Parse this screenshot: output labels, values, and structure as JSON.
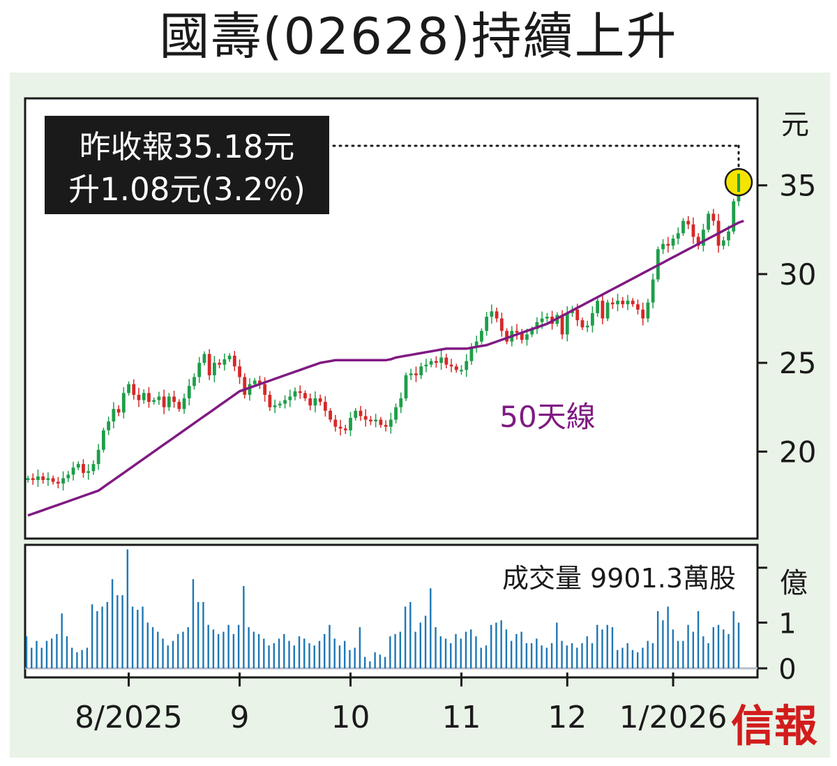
{
  "title": "國壽(02628)持續上升",
  "colors": {
    "background": "#e9f3e7",
    "up": "#1e9e4a",
    "down": "#d62828",
    "ma50": "#7f1a82",
    "volume": "#1f77b4",
    "callout_bg": "#1a1a1a",
    "highlight": "#f5e400",
    "brand": "#d21c1c"
  },
  "callout": {
    "line1": "昨收報35.18元",
    "line2": "升1.08元(3.2%)"
  },
  "brand": "信報",
  "chart_data": [
    {
      "type": "candlestick",
      "title": "國壽(02628)持續上升",
      "ylabel": "元",
      "yticks": [
        20,
        25,
        30,
        35
      ],
      "ylim": [
        15.1,
        39.9
      ],
      "x_tick_labels": [
        "8/2025",
        "9",
        "10",
        "11",
        "12",
        "1/2026"
      ],
      "ma_label": "50天線",
      "last_close": 35.18,
      "change": 1.08,
      "change_pct": 3.2,
      "closes": [
        18.5,
        18.4,
        18.6,
        18.4,
        18.5,
        18.3,
        18.2,
        18.5,
        18.7,
        19.1,
        19.3,
        18.8,
        18.9,
        19.3,
        20.1,
        21.2,
        21.7,
        22.4,
        22.2,
        23.3,
        23.8,
        23.2,
        22.9,
        23.3,
        22.8,
        22.9,
        23.1,
        22.5,
        23.1,
        22.8,
        22.4,
        23.0,
        23.7,
        24.2,
        25.0,
        25.5,
        24.3,
        25.0,
        24.9,
        25.2,
        25.4,
        24.8,
        24.2,
        23.2,
        23.8,
        24.0,
        23.8,
        23.2,
        22.5,
        22.6,
        22.7,
        22.9,
        23.1,
        23.4,
        23.3,
        23.0,
        22.6,
        23.0,
        22.8,
        22.3,
        21.8,
        21.4,
        21.3,
        21.2,
        21.9,
        22.3,
        22.0,
        21.8,
        21.7,
        21.8,
        21.5,
        21.4,
        21.8,
        22.5,
        23.0,
        24.3,
        24.4,
        24.3,
        24.8,
        24.9,
        25.1,
        25.0,
        25.3,
        24.9,
        24.8,
        24.6,
        24.6,
        25.1,
        25.9,
        26.2,
        26.8,
        27.6,
        27.9,
        27.5,
        26.8,
        26.2,
        26.8,
        26.7,
        26.3,
        26.6,
        26.9,
        27.3,
        27.5,
        27.6,
        27.2,
        27.7,
        26.6,
        27.8,
        28.0,
        27.4,
        27.0,
        27.1,
        27.8,
        28.5,
        27.5,
        28.4,
        28.3,
        28.5,
        28.3,
        28.5,
        28.3,
        28.0,
        27.5,
        28.4,
        29.7,
        31.4,
        31.7,
        31.6,
        32.0,
        32.3,
        33.0,
        32.8,
        32.1,
        31.6,
        32.5,
        33.4,
        33.0,
        31.6,
        31.9,
        32.4,
        34.1,
        35.18
      ],
      "opens": [
        18.4,
        18.5,
        18.4,
        18.6,
        18.4,
        18.5,
        18.3,
        18.2,
        18.5,
        18.7,
        19.1,
        19.3,
        18.8,
        18.9,
        19.3,
        20.1,
        21.2,
        21.7,
        22.4,
        22.2,
        23.3,
        23.8,
        23.2,
        22.9,
        23.3,
        22.8,
        22.9,
        23.1,
        22.5,
        23.1,
        22.8,
        22.4,
        23.0,
        23.7,
        24.2,
        25.0,
        25.5,
        24.3,
        25.0,
        24.9,
        25.2,
        25.4,
        24.8,
        24.2,
        23.2,
        23.8,
        24.0,
        23.8,
        23.2,
        22.5,
        22.6,
        22.7,
        22.9,
        23.1,
        23.4,
        23.3,
        23.0,
        22.6,
        23.0,
        22.8,
        22.3,
        21.8,
        21.4,
        21.3,
        21.2,
        21.9,
        22.3,
        22.0,
        21.8,
        21.7,
        21.8,
        21.5,
        21.4,
        21.8,
        22.5,
        23.0,
        24.3,
        24.4,
        24.3,
        24.8,
        24.9,
        25.1,
        25.0,
        25.3,
        24.9,
        24.8,
        24.6,
        24.6,
        25.1,
        25.9,
        26.2,
        26.8,
        27.6,
        27.9,
        27.5,
        26.8,
        26.2,
        26.8,
        26.7,
        26.3,
        26.6,
        26.9,
        27.3,
        27.5,
        27.6,
        27.2,
        27.7,
        26.6,
        27.8,
        28.0,
        27.4,
        27.0,
        27.1,
        27.8,
        28.5,
        27.5,
        28.4,
        28.3,
        28.5,
        28.3,
        28.5,
        28.3,
        28.0,
        27.5,
        28.4,
        29.7,
        31.4,
        31.7,
        31.6,
        32.0,
        32.3,
        33.0,
        32.8,
        32.1,
        31.6,
        32.5,
        33.4,
        33.0,
        31.6,
        31.9,
        32.4,
        34.1
      ],
      "ma50": [
        16.4,
        16.5,
        16.6,
        16.7,
        16.8,
        16.9,
        17.0,
        17.1,
        17.2,
        17.3,
        17.4,
        17.5,
        17.6,
        17.7,
        17.8,
        18.0,
        18.2,
        18.4,
        18.6,
        18.8,
        19.0,
        19.2,
        19.4,
        19.6,
        19.8,
        20.0,
        20.2,
        20.4,
        20.6,
        20.8,
        21.0,
        21.2,
        21.4,
        21.6,
        21.8,
        22.0,
        22.2,
        22.4,
        22.6,
        22.8,
        23.0,
        23.2,
        23.4,
        23.5,
        23.6,
        23.7,
        23.8,
        23.9,
        24.0,
        24.1,
        24.2,
        24.3,
        24.4,
        24.5,
        24.6,
        24.7,
        24.8,
        24.9,
        25.0,
        25.05,
        25.1,
        25.15,
        25.15,
        25.15,
        25.15,
        25.15,
        25.15,
        25.15,
        25.15,
        25.15,
        25.15,
        25.15,
        25.2,
        25.3,
        25.35,
        25.4,
        25.45,
        25.5,
        25.55,
        25.6,
        25.65,
        25.7,
        25.75,
        25.8,
        25.8,
        25.8,
        25.8,
        25.8,
        25.85,
        25.9,
        25.95,
        26.0,
        26.1,
        26.2,
        26.3,
        26.4,
        26.5,
        26.6,
        26.7,
        26.8,
        26.9,
        27.0,
        27.1,
        27.2,
        27.35,
        27.5,
        27.65,
        27.8,
        27.95,
        28.1,
        28.25,
        28.4,
        28.55,
        28.7,
        28.85,
        29.0,
        29.15,
        29.3,
        29.45,
        29.6,
        29.75,
        29.9,
        30.05,
        30.2,
        30.35,
        30.5,
        30.65,
        30.8,
        30.95,
        31.1,
        31.25,
        31.4,
        31.55,
        31.7,
        31.85,
        32.0,
        32.15,
        32.3,
        32.45,
        32.6,
        32.75,
        32.9,
        33.0
      ]
    },
    {
      "type": "bar",
      "title": "成交量",
      "latest_label": "成交量 9901.3萬股",
      "unit": "億",
      "yticks": [
        0,
        1
      ],
      "ylim": [
        0,
        2.7
      ],
      "volumes": [
        0.7,
        0.45,
        0.6,
        0.45,
        0.6,
        0.65,
        0.75,
        1.2,
        0.7,
        0.45,
        0.35,
        0.4,
        0.45,
        1.4,
        1.25,
        1.35,
        1.45,
        1.95,
        1.6,
        1.6,
        2.6,
        1.35,
        1.28,
        1.35,
        1.0,
        0.9,
        0.8,
        0.65,
        0.5,
        0.6,
        0.75,
        0.8,
        0.9,
        1.95,
        1.45,
        1.45,
        0.95,
        0.85,
        0.75,
        0.8,
        0.95,
        0.75,
        0.95,
        1.8,
        0.9,
        0.8,
        0.75,
        0.65,
        0.5,
        0.55,
        0.65,
        0.75,
        0.6,
        0.5,
        0.7,
        0.65,
        0.55,
        0.5,
        0.6,
        0.75,
        0.95,
        0.65,
        0.5,
        0.6,
        0.4,
        0.45,
        0.9,
        0.25,
        0.15,
        0.35,
        0.3,
        0.25,
        0.7,
        0.75,
        0.8,
        1.35,
        1.45,
        0.8,
        1.0,
        1.15,
        1.75,
        0.9,
        0.7,
        0.65,
        0.55,
        0.75,
        0.65,
        0.8,
        0.85,
        0.7,
        0.45,
        0.5,
        0.95,
        1.0,
        1.05,
        0.85,
        0.6,
        0.75,
        0.8,
        0.55,
        0.55,
        0.65,
        0.5,
        0.45,
        0.55,
        1.0,
        0.6,
        0.5,
        0.55,
        0.45,
        0.55,
        0.7,
        0.55,
        0.95,
        0.85,
        0.95,
        0.9,
        0.4,
        0.45,
        0.55,
        0.4,
        0.35,
        0.45,
        0.6,
        0.55,
        1.25,
        1.05,
        1.35,
        0.85,
        0.6,
        0.6,
        0.95,
        0.8,
        1.25,
        0.7,
        0.55,
        0.9,
        0.95,
        0.85,
        0.75,
        1.25,
        1.0
      ]
    }
  ]
}
